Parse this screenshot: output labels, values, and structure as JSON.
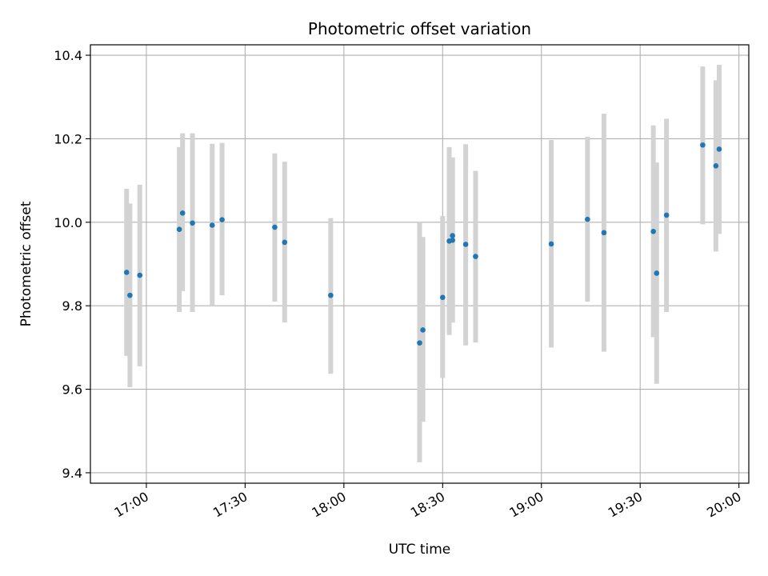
{
  "chart_data": {
    "type": "scatter",
    "title": "Photometric offset variation",
    "xlabel": "UTC time",
    "ylabel": "Photometric offset",
    "x_tick_labels": [
      "17:00",
      "17:30",
      "18:00",
      "18:30",
      "19:00",
      "19:30",
      "20:00"
    ],
    "x_ticks": [
      "17:00",
      "17:30",
      "18:00",
      "18:30",
      "19:00",
      "19:30",
      "20:00"
    ],
    "xlim": [
      "16:43",
      "20:03"
    ],
    "y_ticks": [
      9.4,
      9.6,
      9.8,
      10.0,
      10.2,
      10.4
    ],
    "y_tick_labels": [
      "9.4",
      "9.6",
      "9.8",
      "10.0",
      "10.2",
      "10.4"
    ],
    "ylim": [
      9.375,
      10.425
    ],
    "grid": true,
    "marker_color": "#1f77b4",
    "errorbar_color": "#d3d3d3",
    "points": [
      {
        "x": "16:54",
        "y": 9.88,
        "low": 9.68,
        "high": 10.08
      },
      {
        "x": "16:55",
        "y": 9.825,
        "low": 9.605,
        "high": 10.045
      },
      {
        "x": "16:58",
        "y": 9.873,
        "low": 9.655,
        "high": 10.09
      },
      {
        "x": "17:10",
        "y": 9.983,
        "low": 9.785,
        "high": 10.18
      },
      {
        "x": "17:11",
        "y": 10.022,
        "low": 9.835,
        "high": 10.213
      },
      {
        "x": "17:14",
        "y": 9.998,
        "low": 9.785,
        "high": 10.213
      },
      {
        "x": "17:20",
        "y": 9.993,
        "low": 9.8,
        "high": 10.188
      },
      {
        "x": "17:23",
        "y": 10.006,
        "low": 9.825,
        "high": 10.19
      },
      {
        "x": "17:39",
        "y": 9.988,
        "low": 9.81,
        "high": 10.165
      },
      {
        "x": "17:42",
        "y": 9.952,
        "low": 9.76,
        "high": 10.145
      },
      {
        "x": "17:56",
        "y": 9.825,
        "low": 9.637,
        "high": 10.01
      },
      {
        "x": "18:23",
        "y": 9.711,
        "low": 9.425,
        "high": 10.0
      },
      {
        "x": "18:24",
        "y": 9.742,
        "low": 9.522,
        "high": 9.965
      },
      {
        "x": "18:30",
        "y": 9.82,
        "low": 9.627,
        "high": 10.015
      },
      {
        "x": "18:32",
        "y": 9.955,
        "low": 9.73,
        "high": 10.18
      },
      {
        "x": "18:33",
        "y": 9.968,
        "low": 9.76,
        "high": 10.155
      },
      {
        "x": "18:33",
        "y": 9.957,
        "low": 9.76,
        "high": 10.155
      },
      {
        "x": "18:37",
        "y": 9.947,
        "low": 9.705,
        "high": 10.187
      },
      {
        "x": "18:40",
        "y": 9.918,
        "low": 9.712,
        "high": 10.123
      },
      {
        "x": "19:03",
        "y": 9.948,
        "low": 9.7,
        "high": 10.197
      },
      {
        "x": "19:14",
        "y": 10.007,
        "low": 9.81,
        "high": 10.205
      },
      {
        "x": "19:19",
        "y": 9.975,
        "low": 9.69,
        "high": 10.26
      },
      {
        "x": "19:34",
        "y": 9.978,
        "low": 9.725,
        "high": 10.232
      },
      {
        "x": "19:35",
        "y": 9.878,
        "low": 9.613,
        "high": 10.143
      },
      {
        "x": "19:38",
        "y": 10.017,
        "low": 9.785,
        "high": 10.248
      },
      {
        "x": "19:49",
        "y": 10.185,
        "low": 9.995,
        "high": 10.373
      },
      {
        "x": "19:53",
        "y": 10.135,
        "low": 9.93,
        "high": 10.34
      },
      {
        "x": "19:54",
        "y": 10.175,
        "low": 9.972,
        "high": 10.377
      }
    ]
  }
}
